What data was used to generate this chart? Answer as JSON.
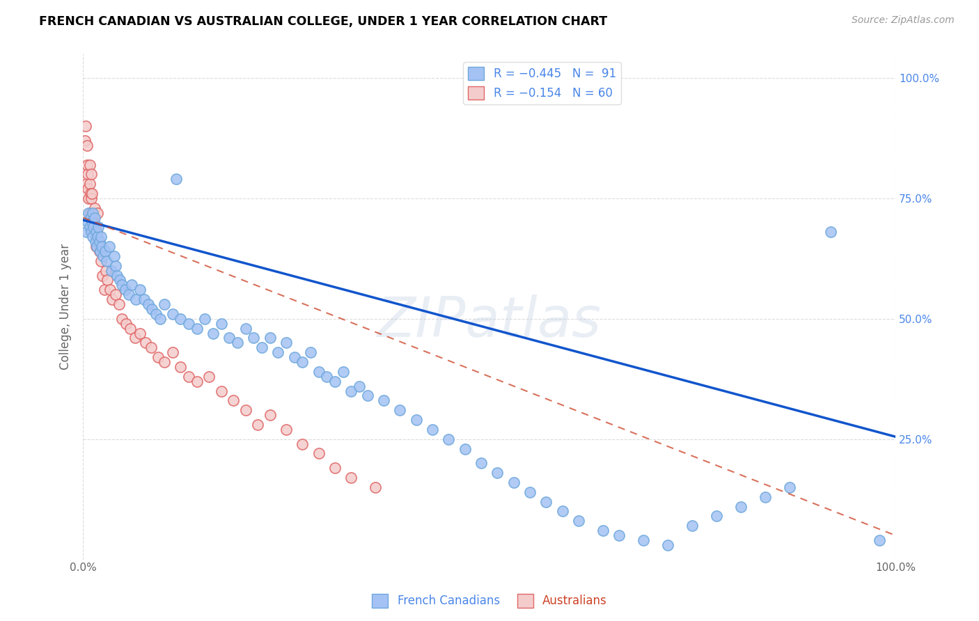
{
  "title": "FRENCH CANADIAN VS AUSTRALIAN COLLEGE, UNDER 1 YEAR CORRELATION CHART",
  "source": "Source: ZipAtlas.com",
  "ylabel": "College, Under 1 year",
  "watermark": "ZIPatlas",
  "blue_color": "#a4c2f4",
  "blue_edge": "#6fa8dc",
  "pink_color": "#f4cccc",
  "pink_edge": "#e06666",
  "trend_blue": "#1155cc",
  "trend_pink": "#cc4125",
  "background": "#ffffff",
  "grid_color": "#cccccc",
  "right_tick_color": "#4a86e8",
  "label_color": "#666666",
  "title_color": "#000000",
  "source_color": "#999999",
  "fc_x": [
    0.004,
    0.006,
    0.007,
    0.008,
    0.009,
    0.01,
    0.011,
    0.012,
    0.012,
    0.013,
    0.014,
    0.015,
    0.016,
    0.017,
    0.018,
    0.019,
    0.02,
    0.021,
    0.022,
    0.023,
    0.025,
    0.027,
    0.029,
    0.032,
    0.035,
    0.038,
    0.04,
    0.042,
    0.045,
    0.048,
    0.052,
    0.056,
    0.06,
    0.065,
    0.07,
    0.075,
    0.08,
    0.085,
    0.09,
    0.095,
    0.1,
    0.11,
    0.115,
    0.12,
    0.13,
    0.14,
    0.15,
    0.16,
    0.17,
    0.18,
    0.19,
    0.2,
    0.21,
    0.22,
    0.23,
    0.24,
    0.25,
    0.26,
    0.27,
    0.28,
    0.29,
    0.3,
    0.31,
    0.32,
    0.33,
    0.34,
    0.35,
    0.37,
    0.39,
    0.41,
    0.43,
    0.45,
    0.47,
    0.49,
    0.51,
    0.53,
    0.55,
    0.57,
    0.59,
    0.61,
    0.64,
    0.66,
    0.69,
    0.72,
    0.75,
    0.78,
    0.81,
    0.84,
    0.87,
    0.92,
    0.98
  ],
  "fc_y": [
    0.68,
    0.7,
    0.72,
    0.69,
    0.71,
    0.68,
    0.7,
    0.72,
    0.67,
    0.69,
    0.71,
    0.66,
    0.68,
    0.65,
    0.67,
    0.69,
    0.66,
    0.64,
    0.67,
    0.65,
    0.63,
    0.64,
    0.62,
    0.65,
    0.6,
    0.63,
    0.61,
    0.59,
    0.58,
    0.57,
    0.56,
    0.55,
    0.57,
    0.54,
    0.56,
    0.54,
    0.53,
    0.52,
    0.51,
    0.5,
    0.53,
    0.51,
    0.79,
    0.5,
    0.49,
    0.48,
    0.5,
    0.47,
    0.49,
    0.46,
    0.45,
    0.48,
    0.46,
    0.44,
    0.46,
    0.43,
    0.45,
    0.42,
    0.41,
    0.43,
    0.39,
    0.38,
    0.37,
    0.39,
    0.35,
    0.36,
    0.34,
    0.33,
    0.31,
    0.29,
    0.27,
    0.25,
    0.23,
    0.2,
    0.18,
    0.16,
    0.14,
    0.12,
    0.1,
    0.08,
    0.06,
    0.05,
    0.04,
    0.03,
    0.07,
    0.09,
    0.11,
    0.13,
    0.15,
    0.68,
    0.04
  ],
  "au_x": [
    0.002,
    0.003,
    0.004,
    0.005,
    0.005,
    0.006,
    0.006,
    0.007,
    0.008,
    0.008,
    0.009,
    0.009,
    0.01,
    0.01,
    0.011,
    0.011,
    0.012,
    0.012,
    0.013,
    0.014,
    0.015,
    0.016,
    0.017,
    0.018,
    0.019,
    0.02,
    0.022,
    0.024,
    0.026,
    0.028,
    0.03,
    0.033,
    0.036,
    0.04,
    0.044,
    0.048,
    0.053,
    0.058,
    0.064,
    0.07,
    0.077,
    0.084,
    0.092,
    0.1,
    0.11,
    0.12,
    0.13,
    0.14,
    0.155,
    0.17,
    0.185,
    0.2,
    0.215,
    0.23,
    0.25,
    0.27,
    0.29,
    0.31,
    0.33,
    0.36
  ],
  "au_y": [
    0.87,
    0.9,
    0.78,
    0.82,
    0.86,
    0.8,
    0.77,
    0.75,
    0.78,
    0.82,
    0.76,
    0.72,
    0.75,
    0.8,
    0.76,
    0.71,
    0.72,
    0.68,
    0.7,
    0.73,
    0.69,
    0.65,
    0.68,
    0.72,
    0.66,
    0.64,
    0.62,
    0.59,
    0.56,
    0.6,
    0.58,
    0.56,
    0.54,
    0.55,
    0.53,
    0.5,
    0.49,
    0.48,
    0.46,
    0.47,
    0.45,
    0.44,
    0.42,
    0.41,
    0.43,
    0.4,
    0.38,
    0.37,
    0.38,
    0.35,
    0.33,
    0.31,
    0.28,
    0.3,
    0.27,
    0.24,
    0.22,
    0.19,
    0.17,
    0.15
  ],
  "fc_trend_x0": 0.0,
  "fc_trend_y0": 0.705,
  "fc_trend_x1": 1.0,
  "fc_trend_y1": 0.255,
  "au_trend_x0": 0.0,
  "au_trend_y0": 0.71,
  "au_trend_x1": 1.0,
  "au_trend_y1": 0.05,
  "xlim": [
    0.0,
    1.0
  ],
  "ylim": [
    0.0,
    1.05
  ],
  "ytick_vals": [
    0.25,
    0.5,
    0.75,
    1.0
  ],
  "ytick_labels": [
    "25.0%",
    "50.0%",
    "75.0%",
    "100.0%"
  ],
  "xtick_vals": [
    0.0,
    1.0
  ],
  "xtick_labels": [
    "0.0%",
    "100.0%"
  ]
}
